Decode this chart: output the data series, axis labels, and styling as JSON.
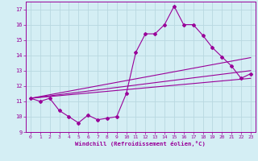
{
  "xlabel": "Windchill (Refroidissement éolien,°C)",
  "bg_color": "#d4eef4",
  "grid_color": "#b8d8e0",
  "line_color": "#990099",
  "xlim": [
    -0.5,
    23.5
  ],
  "ylim": [
    9,
    17.5
  ],
  "yticks": [
    9,
    10,
    11,
    12,
    13,
    14,
    15,
    16,
    17
  ],
  "xticks": [
    0,
    1,
    2,
    3,
    4,
    5,
    6,
    7,
    8,
    9,
    10,
    11,
    12,
    13,
    14,
    15,
    16,
    17,
    18,
    19,
    20,
    21,
    22,
    23
  ],
  "line1_x": [
    0,
    1,
    2,
    3,
    4,
    5,
    6,
    7,
    8,
    9,
    10,
    11,
    12,
    13,
    14,
    15,
    16,
    17,
    18,
    19,
    20,
    21,
    22,
    23
  ],
  "line1_y": [
    11.2,
    11.0,
    11.2,
    10.4,
    10.0,
    9.6,
    10.1,
    9.8,
    9.9,
    10.0,
    11.5,
    14.2,
    15.4,
    15.4,
    16.0,
    17.2,
    16.0,
    16.0,
    15.3,
    14.5,
    13.9,
    13.3,
    12.5,
    12.8
  ],
  "line2_x": [
    0,
    23
  ],
  "line2_y": [
    11.2,
    12.5
  ],
  "line3_x": [
    0,
    23
  ],
  "line3_y": [
    11.2,
    13.0
  ],
  "line4_x": [
    0,
    23
  ],
  "line4_y": [
    11.2,
    13.85
  ]
}
